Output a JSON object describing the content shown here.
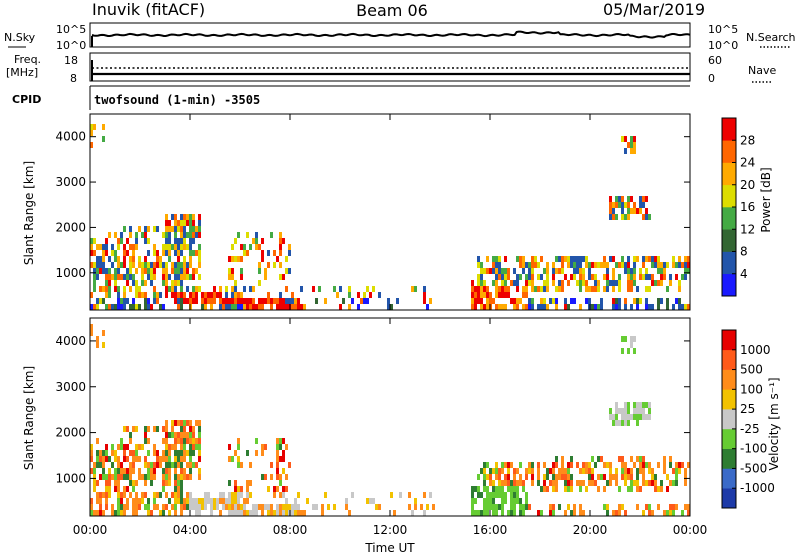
{
  "header": {
    "radar": "Inuvik (fitACF)",
    "beam": "Beam 06",
    "date": "05/Mar/2019"
  },
  "summary": {
    "nsky_label": "N.Sky",
    "nsky_ticks": [
      "10^5",
      "10^0"
    ],
    "nsearch_label": "N.Search",
    "nsearch_ticks": [
      "10^5",
      "10^0"
    ],
    "freq_label_line1": "Freq.",
    "freq_label_line2": "[MHz]",
    "freq_ticks": [
      "18",
      "8"
    ],
    "nave_label": "Nave",
    "nave_ticks": [
      "60",
      "0"
    ],
    "cpid_label": "CPID",
    "cpid_text": "twofsound (1-min) -3505"
  },
  "chart_data": [
    {
      "type": "heatmap",
      "name": "power",
      "ylabel": "Slant Range [km]",
      "yticks": [
        1000,
        2000,
        3000,
        4000
      ],
      "ylim": [
        180,
        4500
      ],
      "xlim_hours": [
        0,
        24
      ],
      "xticks": [
        "00:00",
        "04:00",
        "08:00",
        "12:00",
        "16:00",
        "20:00",
        "00:00"
      ],
      "colorbar_label": "Power [dB]",
      "colorbar_ticks": [
        "4",
        "8",
        "12",
        "16",
        "20",
        "24",
        "28"
      ],
      "colors": [
        "#1a1aff",
        "#2255aa",
        "#336633",
        "#44aa44",
        "#dddd00",
        "#ffaa00",
        "#ff6600",
        "#ee0000"
      ]
    },
    {
      "type": "heatmap",
      "name": "velocity",
      "ylabel": "Slant Range [km]",
      "yticks": [
        1000,
        2000,
        3000,
        4000
      ],
      "ylim": [
        180,
        4500
      ],
      "xlim_hours": [
        0,
        24
      ],
      "xticks": [
        "00:00",
        "04:00",
        "08:00",
        "12:00",
        "16:00",
        "20:00",
        "00:00"
      ],
      "xlabel": "Time UT",
      "colorbar_label": "Velocity [m s⁻¹]",
      "colorbar_ticks": [
        "1000",
        "500",
        "100",
        "25",
        "-25",
        "-100",
        "-500",
        "-1000"
      ],
      "colors": [
        "#1d3aa8",
        "#3a6ac8",
        "#2e7d32",
        "#66cc33",
        "#c8c8c8",
        "#f2c200",
        "#ff8c1a",
        "#ff5a1a",
        "#e60000"
      ]
    }
  ]
}
